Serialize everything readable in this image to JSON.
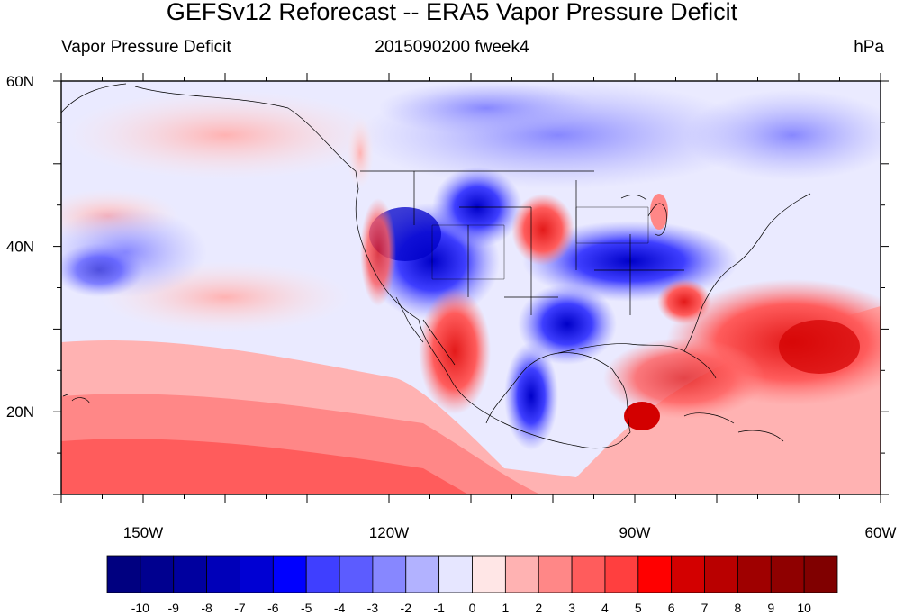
{
  "title": "GEFSv12 Reforecast -- ERA5 Vapor Pressure Deficit",
  "left_subtitle": "Vapor Pressure Deficit",
  "center_subtitle": "2015090200 fweek4",
  "right_subtitle": "hPa",
  "map": {
    "lon_range": [
      -160,
      -60
    ],
    "lat_range": [
      10,
      60
    ],
    "x_tick_labels": [
      {
        "lon": -150,
        "label": "150W"
      },
      {
        "lon": -120,
        "label": "120W"
      },
      {
        "lon": -90,
        "label": "90W"
      },
      {
        "lon": -60,
        "label": "60W"
      }
    ],
    "y_tick_labels": [
      {
        "lat": 60,
        "label": "60N"
      },
      {
        "lat": 40,
        "label": "40N"
      },
      {
        "lat": 20,
        "label": "20N"
      }
    ]
  },
  "colorbar": {
    "colors": [
      "#000080",
      "#00008f",
      "#00009f",
      "#0000b9",
      "#0000d3",
      "#0000ff",
      "#3f3fff",
      "#5c5cff",
      "#8787ff",
      "#b2b2ff",
      "#e6e6ff",
      "#ffe6e6",
      "#ffb2b2",
      "#ff8787",
      "#ff5c5c",
      "#ff3f3f",
      "#ff0000",
      "#d30000",
      "#b90000",
      "#9f0000",
      "#8f0000",
      "#800000"
    ],
    "tick_labels": [
      "-10",
      "-9",
      "-8",
      "-7",
      "-6",
      "-5",
      "-4",
      "-3",
      "-2",
      "-1",
      "0",
      "1",
      "2",
      "3",
      "4",
      "5",
      "6",
      "7",
      "8",
      "9",
      "10"
    ]
  }
}
